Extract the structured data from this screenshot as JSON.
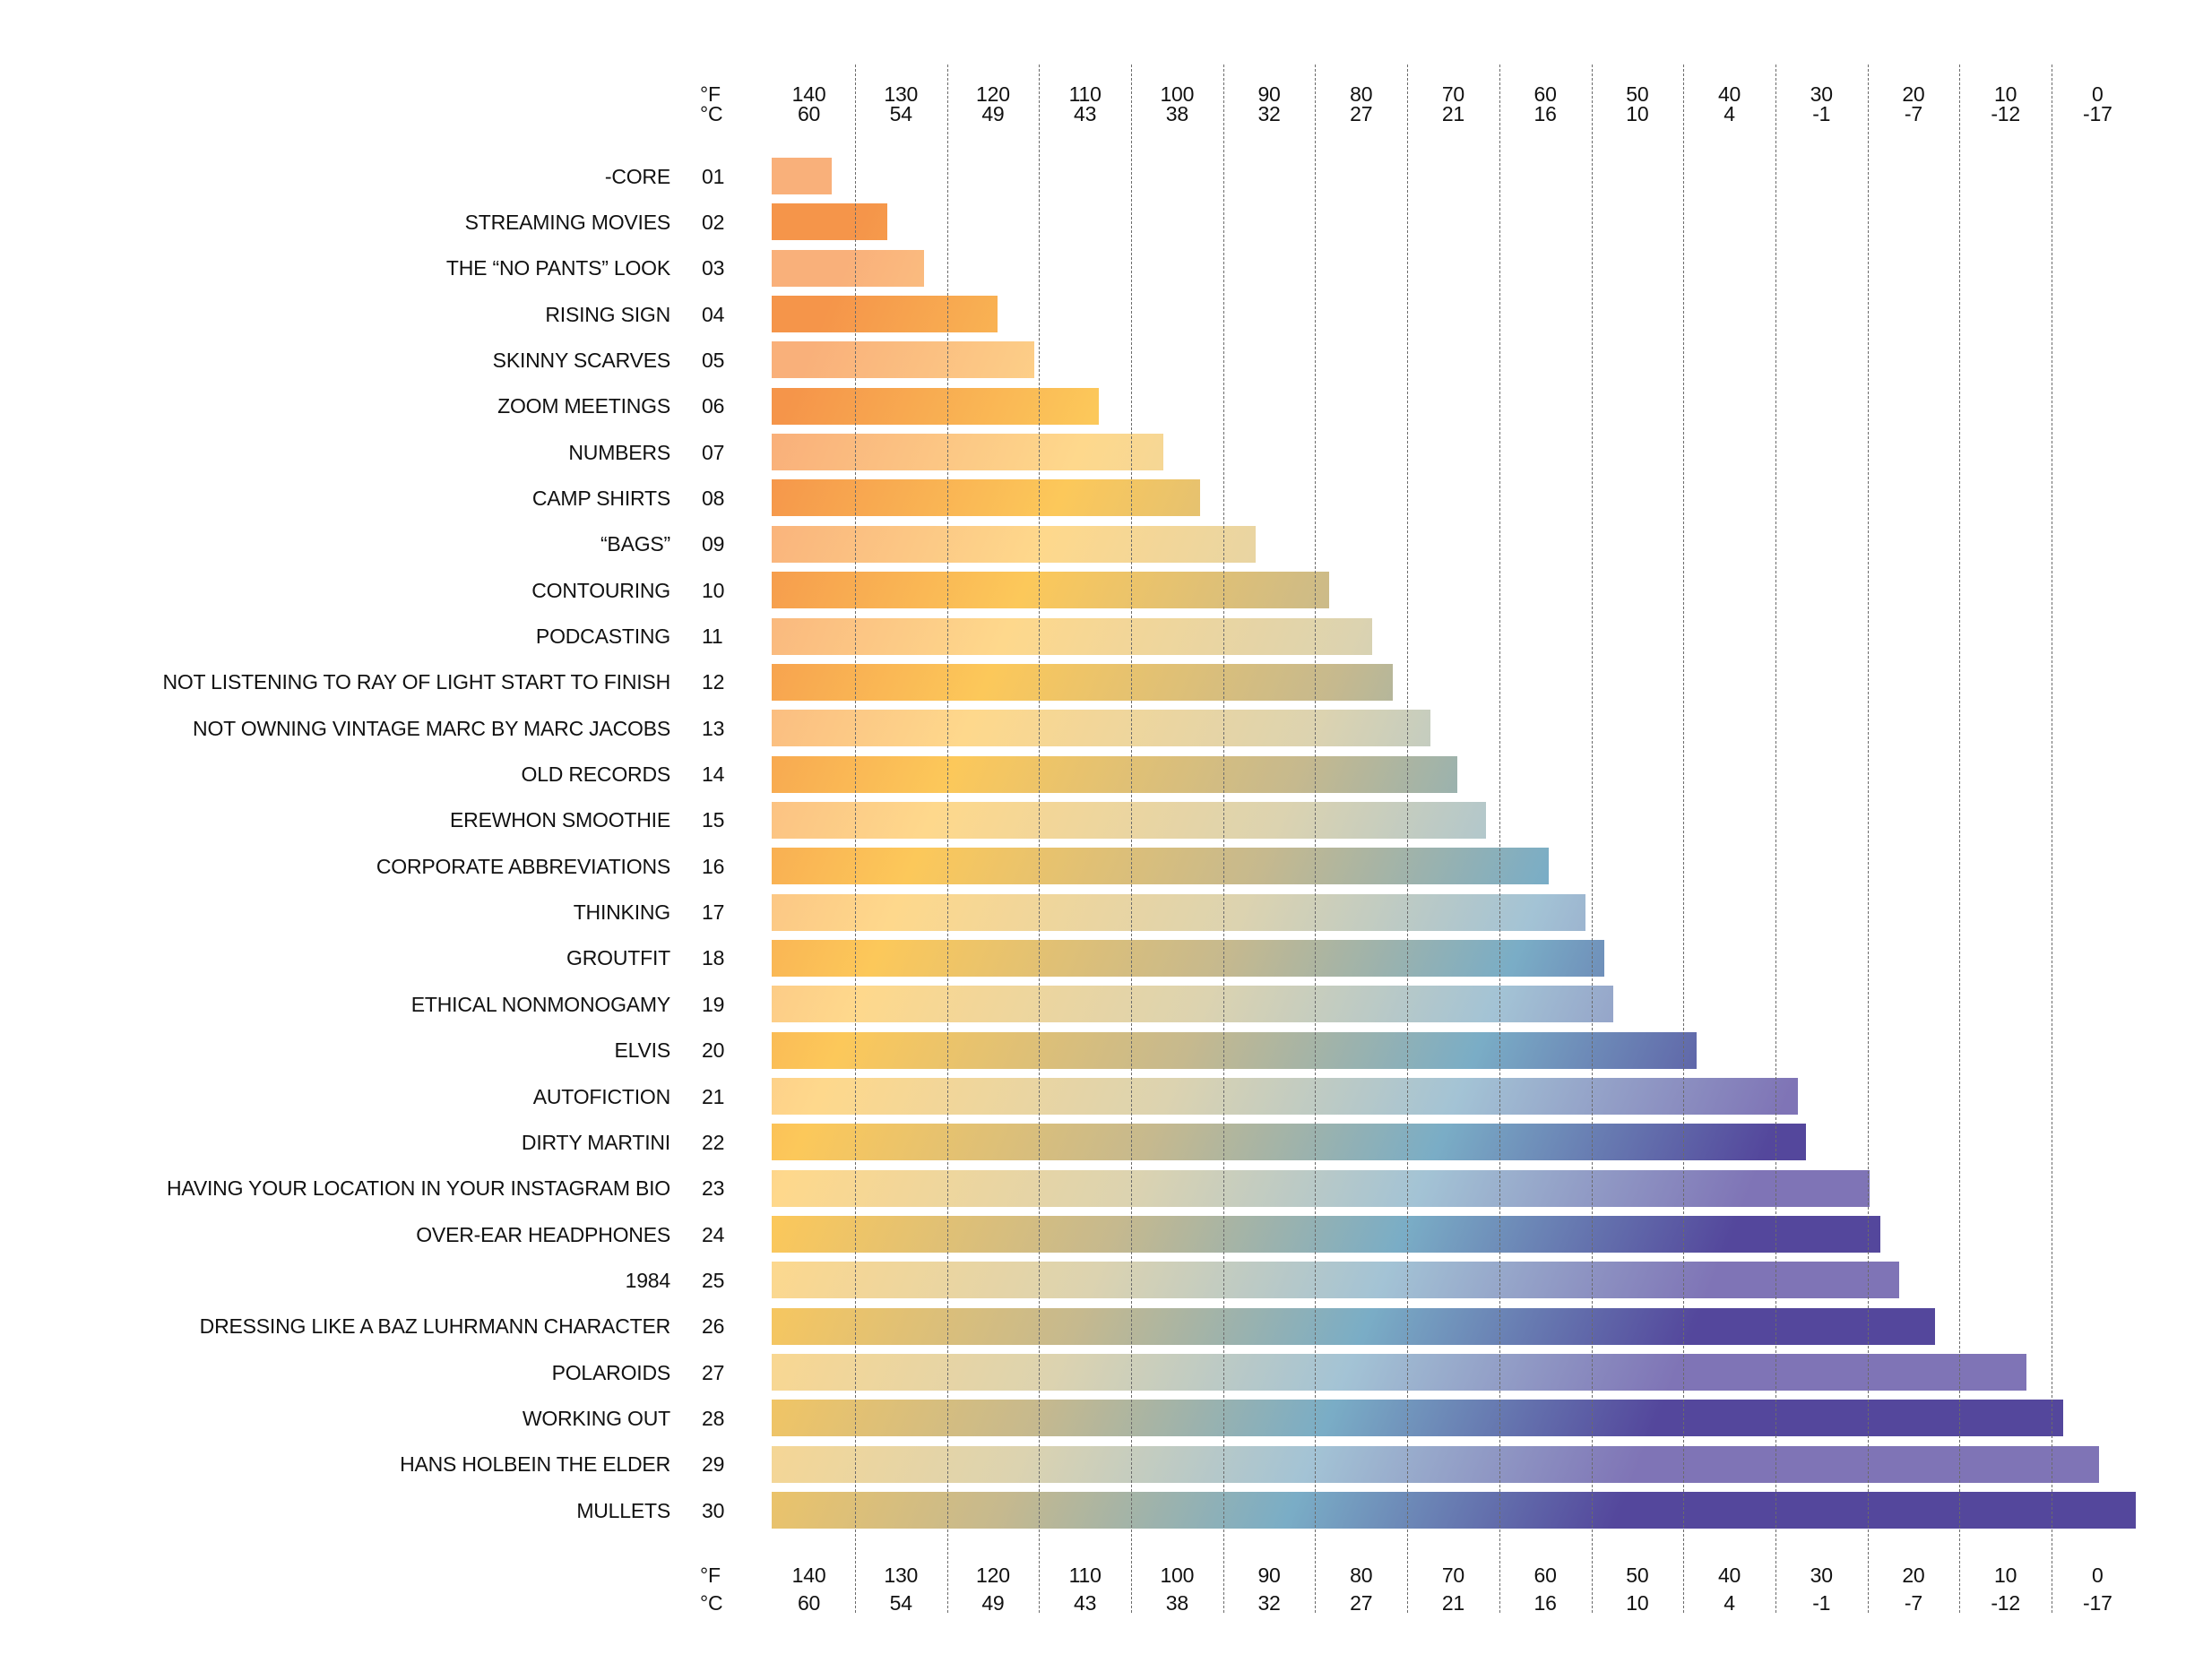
{
  "chart_data": {
    "type": "bar",
    "orientation": "horizontal",
    "title": "",
    "xlabel": "",
    "ylabel": "",
    "axis_units": {
      "primary": "°F",
      "secondary": "°C"
    },
    "x_ticks_f": [
      "140",
      "130",
      "120",
      "110",
      "100",
      "90",
      "80",
      "70",
      "60",
      "50",
      "40",
      "30",
      "20",
      "10",
      "0"
    ],
    "x_ticks_c": [
      "60",
      "54",
      "49",
      "43",
      "38",
      "32",
      "27",
      "21",
      "16",
      "10",
      "4",
      "-1",
      "-7",
      "-12",
      "-17"
    ],
    "xlim_f": [
      144,
      -6
    ],
    "x_reversed": true,
    "gridlines_f": [
      135,
      125,
      115,
      105,
      95,
      85,
      75,
      65,
      55,
      45,
      35,
      25,
      15,
      5
    ],
    "grid": "dashed vertical",
    "categories": [
      "-CORE",
      "STREAMING MOVIES",
      "THE “NO PANTS” LOOK",
      "RISING SIGN",
      "SKINNY SCARVES",
      "ZOOM MEETINGS",
      "NUMBERS",
      "CAMP SHIRTS",
      "“BAGS”",
      "CONTOURING",
      "PODCASTING",
      "NOT LISTENING TO RAY OF LIGHT START TO FINISH",
      "NOT OWNING VINTAGE MARC BY MARC JACOBS",
      "OLD RECORDS",
      "EREWHON SMOOTHIE",
      "CORPORATE ABBREVIATIONS",
      "THINKING",
      "GROUTFIT",
      "ETHICAL NONMONOGAMY",
      "ELVIS",
      "AUTOFICTION",
      "DIRTY MARTINI",
      "HAVING YOUR LOCATION IN YOUR INSTAGRAM BIO",
      "OVER-EAR HEADPHONES",
      "1984",
      "DRESSING LIKE A BAZ LUHRMANN CHARACTER",
      "POLAROIDS",
      "WORKING OUT",
      "HANS HOLBEIN THE ELDER",
      "MULLETS"
    ],
    "ranks": [
      "01",
      "02",
      "03",
      "04",
      "05",
      "06",
      "07",
      "08",
      "09",
      "10",
      "11",
      "12",
      "13",
      "14",
      "15",
      "16",
      "17",
      "18",
      "19",
      "20",
      "21",
      "22",
      "23",
      "24",
      "25",
      "26",
      "27",
      "28",
      "29",
      "30"
    ],
    "values_f": [
      137.5,
      131.5,
      127.5,
      119.5,
      115.5,
      108.5,
      101.5,
      97.5,
      91.5,
      83.5,
      78.8,
      76.6,
      72.5,
      69.6,
      66.4,
      59.6,
      55.6,
      53.6,
      52.6,
      43.6,
      32.6,
      31.7,
      24.8,
      23.6,
      21.6,
      17.7,
      7.7,
      3.7,
      -0.2,
      -4.2
    ],
    "legend": "none",
    "palette": {
      "strong": [
        "#f5954a",
        "#fcc85a",
        "#c6b98e",
        "#7aadc6",
        "#54479c"
      ],
      "soft": [
        "#f9b07a",
        "#fed88c",
        "#dcd3b0",
        "#a3c3d5",
        "#7f74b6"
      ]
    }
  }
}
